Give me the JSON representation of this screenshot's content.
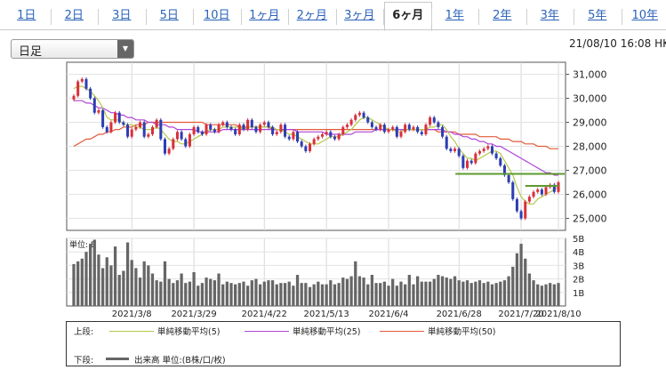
{
  "tabs": [
    "1日",
    "2日",
    "3日",
    "5日",
    "10日",
    "1ヶ月",
    "2ヶ月",
    "3ヶ月",
    "6ヶ月",
    "1年",
    "2年",
    "3年",
    "5年",
    "10年"
  ],
  "active_tab": "6ヶ月",
  "period_select": {
    "value": "日足"
  },
  "timestamp": "21/08/10 16:08 HKT",
  "colors": {
    "up": "#d9303a",
    "down": "#2d3db3",
    "sma5": "#b5c84a",
    "sma25": "#b046d8",
    "sma50": "#e35a3a",
    "volume": "#666666",
    "support": "#5e9a2c"
  },
  "legend": {
    "upper_label": "上段:",
    "lower_label": "下段:",
    "sma5": "単純移動平均(5)",
    "sma25": "単純移動平均(25)",
    "sma50": "単純移動平均(50)",
    "volume": "出来高 単位:(B株/口/枚)"
  },
  "chart_data": [
    {
      "type": "candlestick",
      "ylim": [
        24500,
        31500
      ],
      "y_ticks": [
        25000,
        26000,
        27000,
        28000,
        29000,
        30000,
        31000
      ],
      "x_tick_labels": [
        "2021/3/8",
        "2021/3/29",
        "2021/4/22",
        "2021/5/13",
        "2021/6/4",
        "2021/6/28",
        "2021/7/20",
        "2021/8/10"
      ],
      "close": [
        30100,
        30700,
        30800,
        30400,
        30000,
        29400,
        29500,
        28800,
        28600,
        29000,
        29400,
        29000,
        28900,
        28400,
        28700,
        28800,
        29000,
        28400,
        28500,
        28800,
        29100,
        28300,
        27700,
        27900,
        28300,
        28600,
        28300,
        28000,
        28500,
        28800,
        28600,
        28500,
        28900,
        28700,
        28600,
        28900,
        29000,
        28800,
        28700,
        28500,
        28900,
        28700,
        29100,
        28800,
        28600,
        28900,
        29000,
        28800,
        28500,
        28600,
        28900,
        28400,
        28300,
        28600,
        28200,
        28000,
        27800,
        28100,
        28300,
        28400,
        28500,
        28600,
        28400,
        28300,
        28500,
        28800,
        28900,
        29100,
        29300,
        29400,
        29200,
        29000,
        28800,
        28700,
        28900,
        28600,
        28700,
        28800,
        28400,
        28600,
        28900,
        28700,
        28800,
        28600,
        28500,
        28900,
        29200,
        29000,
        28800,
        28400,
        27900,
        27800,
        27900,
        27600,
        27100,
        27400,
        27300,
        27700,
        27800,
        27900,
        28000,
        27700,
        27500,
        27200,
        26800,
        26500,
        25800,
        25300,
        25000,
        25700,
        25900,
        26100,
        26200,
        26000,
        26300,
        26400,
        26100,
        26500
      ],
      "sma5": [
        30400,
        30500,
        30500,
        30400,
        30300,
        30100,
        29900,
        29600,
        29200,
        29100,
        29100,
        29100,
        28900,
        28900,
        28900,
        28800,
        28800,
        28700,
        28700,
        28700,
        28800,
        28700,
        28500,
        28300,
        28200,
        28200,
        28100,
        28100,
        28200,
        28300,
        28400,
        28500,
        28600,
        28700,
        28700,
        28700,
        28800,
        28800,
        28800,
        28800,
        28800,
        28700,
        28800,
        28800,
        28800,
        28800,
        28800,
        28800,
        28800,
        28700,
        28700,
        28600,
        28500,
        28500,
        28400,
        28300,
        28200,
        28100,
        28100,
        28100,
        28200,
        28300,
        28400,
        28400,
        28400,
        28500,
        28600,
        28700,
        28900,
        29100,
        29200,
        29200,
        29100,
        29000,
        28900,
        28800,
        28700,
        28700,
        28600,
        28600,
        28700,
        28700,
        28700,
        28700,
        28700,
        28700,
        28800,
        28800,
        28900,
        28900,
        28700,
        28400,
        28200,
        27900,
        27700,
        27500,
        27500,
        27400,
        27500,
        27600,
        27700,
        27800,
        27800,
        27700,
        27400,
        27100,
        26800,
        26300,
        25900,
        25700,
        25600,
        25600,
        25800,
        25900,
        26000,
        26100,
        26200,
        26300
      ],
      "sma25": [
        29900,
        29900,
        29900,
        29800,
        29800,
        29700,
        29600,
        29600,
        29500,
        29400,
        29400,
        29300,
        29300,
        29200,
        29200,
        29100,
        29100,
        29100,
        29000,
        29000,
        28900,
        28900,
        28900,
        28800,
        28800,
        28700,
        28700,
        28700,
        28700,
        28700,
        28600,
        28600,
        28600,
        28600,
        28600,
        28600,
        28700,
        28700,
        28700,
        28700,
        28700,
        28700,
        28700,
        28700,
        28700,
        28700,
        28700,
        28700,
        28700,
        28700,
        28700,
        28700,
        28700,
        28700,
        28600,
        28600,
        28600,
        28600,
        28600,
        28600,
        28600,
        28500,
        28500,
        28500,
        28500,
        28500,
        28500,
        28500,
        28600,
        28600,
        28600,
        28600,
        28600,
        28700,
        28700,
        28700,
        28700,
        28700,
        28700,
        28700,
        28700,
        28700,
        28700,
        28700,
        28700,
        28700,
        28700,
        28700,
        28700,
        28700,
        28600,
        28600,
        28500,
        28500,
        28400,
        28400,
        28300,
        28300,
        28200,
        28200,
        28100,
        28100,
        28000,
        28000,
        27900,
        27800,
        27700,
        27600,
        27500,
        27400,
        27300,
        27200,
        27100,
        27000,
        26900,
        26900,
        26800,
        26800
      ],
      "sma50": [
        28000,
        28100,
        28200,
        28300,
        28300,
        28400,
        28500,
        28500,
        28600,
        28600,
        28700,
        28700,
        28800,
        28800,
        28800,
        28900,
        28900,
        28900,
        29000,
        29000,
        29000,
        29000,
        29000,
        29000,
        29000,
        29000,
        29000,
        29000,
        29000,
        29000,
        29000,
        29000,
        28900,
        28900,
        28900,
        28900,
        28900,
        28900,
        28900,
        28900,
        28800,
        28800,
        28800,
        28800,
        28800,
        28800,
        28800,
        28800,
        28700,
        28700,
        28700,
        28700,
        28700,
        28700,
        28700,
        28700,
        28700,
        28700,
        28700,
        28700,
        28700,
        28700,
        28700,
        28700,
        28700,
        28700,
        28700,
        28700,
        28700,
        28700,
        28700,
        28700,
        28700,
        28700,
        28700,
        28700,
        28700,
        28700,
        28700,
        28700,
        28700,
        28700,
        28700,
        28700,
        28700,
        28700,
        28700,
        28700,
        28600,
        28600,
        28600,
        28600,
        28600,
        28500,
        28500,
        28500,
        28500,
        28500,
        28400,
        28400,
        28400,
        28400,
        28400,
        28300,
        28300,
        28300,
        28200,
        28200,
        28200,
        28100,
        28100,
        28100,
        28000,
        28000,
        28000,
        27900,
        27900,
        27900
      ],
      "support_lines": [
        26850,
        26350
      ]
    },
    {
      "type": "bar",
      "title": "単位: B",
      "ylim": [
        0,
        5
      ],
      "y_ticks": [
        "1B",
        "2B",
        "3B",
        "4B",
        "5B"
      ],
      "values": [
        3.1,
        3.3,
        3.5,
        4.0,
        4.6,
        4.9,
        3.8,
        2.8,
        3.6,
        3.0,
        4.4,
        2.3,
        2.6,
        4.7,
        3.4,
        2.8,
        2.1,
        3.3,
        3.0,
        2.4,
        1.9,
        1.8,
        3.3,
        2.0,
        1.7,
        1.9,
        2.4,
        1.7,
        1.8,
        2.5,
        1.5,
        1.7,
        2.1,
        2.0,
        1.9,
        2.4,
        1.6,
        1.8,
        1.7,
        1.6,
        1.7,
        1.8,
        1.5,
        1.9,
        2.0,
        1.6,
        1.8,
        1.9,
        1.9,
        1.6,
        1.7,
        1.7,
        1.8,
        1.5,
        2.3,
        1.7,
        1.7,
        1.4,
        1.6,
        1.8,
        1.6,
        1.6,
        1.9,
        1.6,
        1.7,
        2.1,
        2.0,
        2.2,
        3.3,
        2.2,
        2.1,
        1.6,
        2.3,
        1.7,
        1.7,
        1.8,
        1.5,
        2.0,
        1.5,
        1.8,
        1.6,
        2.3,
        1.6,
        2.2,
        1.8,
        1.8,
        1.8,
        2.0,
        2.3,
        2.2,
        2.1,
        2.0,
        2.2,
        1.9,
        1.8,
        1.9,
        1.7,
        1.8,
        1.9,
        1.7,
        1.8,
        1.6,
        1.7,
        1.8,
        1.9,
        2.2,
        2.9,
        3.9,
        4.6,
        3.5,
        2.4,
        1.9,
        1.6,
        1.5,
        1.6,
        1.7,
        1.6,
        1.7
      ]
    }
  ]
}
